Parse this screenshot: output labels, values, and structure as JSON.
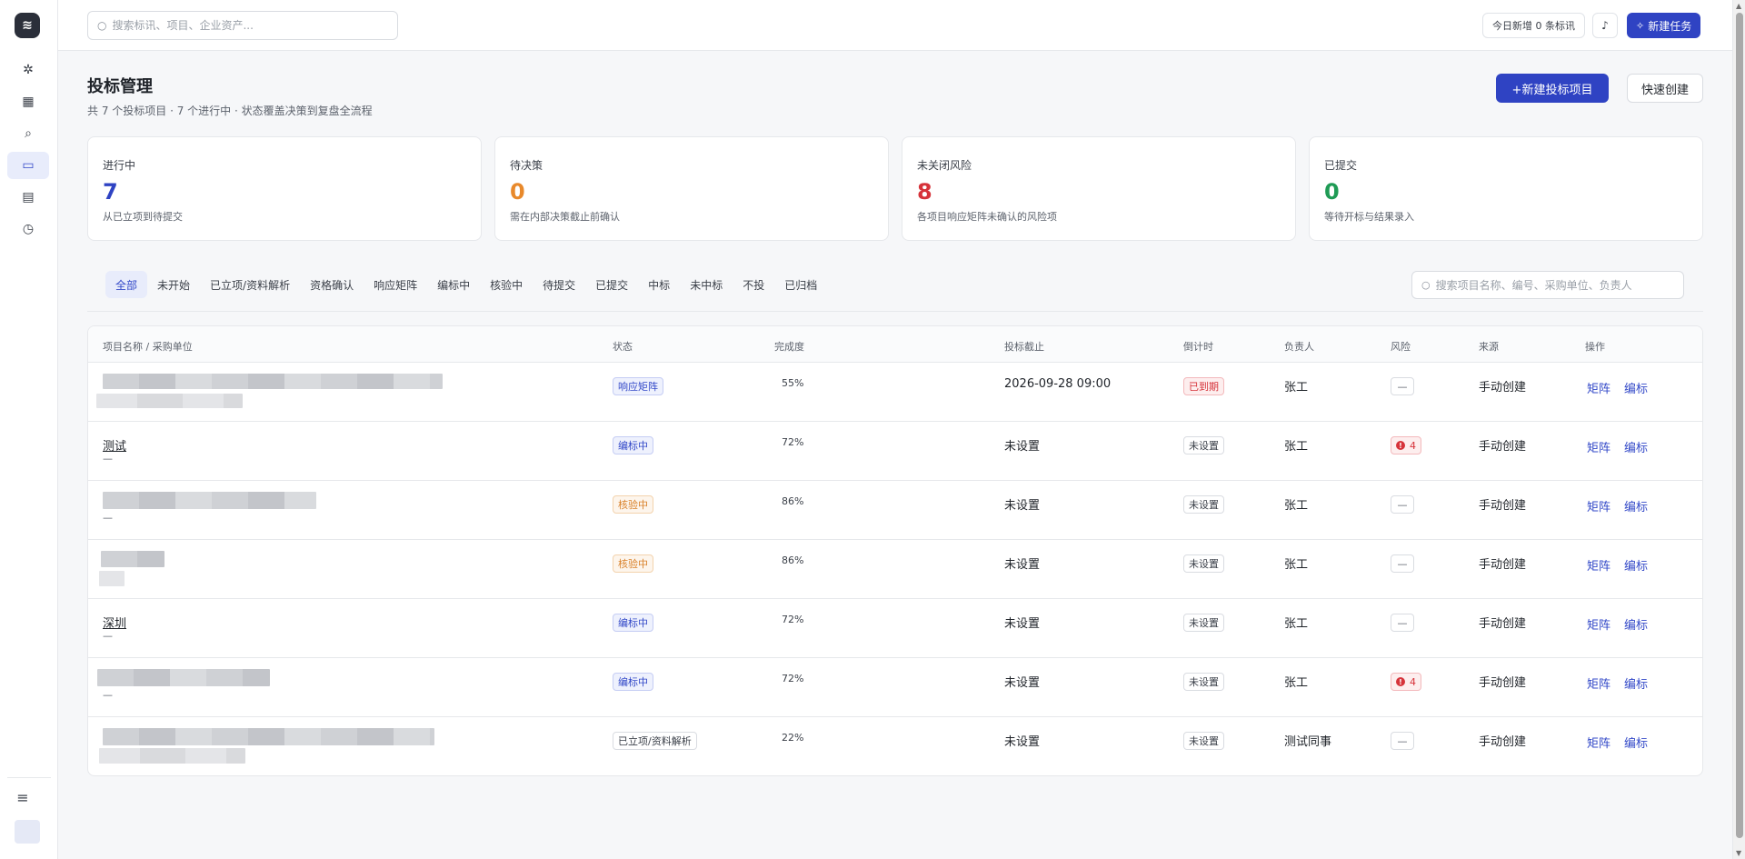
{
  "topbar": {
    "search_placeholder": "搜索标讯、项目、企业资产...",
    "today_chip": "今日新增 0 条标讯",
    "new_task_label": "新建任务"
  },
  "page": {
    "title": "投标管理",
    "subtitle": "共 7 个投标项目 · 7 个进行中 · 状态覆盖决策到复盘全流程",
    "primary_button": "+新建投标项目",
    "secondary_button": "快速创建"
  },
  "stats": [
    {
      "label": "进行中",
      "value": "7",
      "desc": "从已立项到待提交",
      "color": "#2f43c3"
    },
    {
      "label": "待决策",
      "value": "0",
      "desc": "需在内部决策截止前确认",
      "color": "#e8892b"
    },
    {
      "label": "未关闭风险",
      "value": "8",
      "desc": "各项目响应矩阵未确认的风险项",
      "color": "#d6333a"
    },
    {
      "label": "已提交",
      "value": "0",
      "desc": "等待开标与结果录入",
      "color": "#1f9b55"
    }
  ],
  "tabs": [
    "全部",
    "未开始",
    "已立项/资料解析",
    "资格确认",
    "响应矩阵",
    "编标中",
    "核验中",
    "待提交",
    "已提交",
    "中标",
    "未中标",
    "不投",
    "已归档"
  ],
  "project_search_placeholder": "搜索项目名称、编号、采购单位、负责人",
  "table": {
    "headers": {
      "name": "项目名称 / 采购单位",
      "status": "状态",
      "progress": "完成度",
      "deadline": "投标截止",
      "countdown": "倒计时",
      "owner": "负责人",
      "risk": "风险",
      "source": "来源",
      "actions": "操作"
    },
    "rows": [
      {
        "name": "",
        "buyer": "",
        "status": "响应矩阵",
        "progress": "55%",
        "deadline": "2026-09-28 09:00",
        "countdown": "已到期",
        "owner": "张工",
        "risk": "—",
        "source": "手动创建",
        "action1": "矩阵",
        "action2": "编标"
      },
      {
        "name": "测试",
        "buyer": "—",
        "status": "编标中",
        "progress": "72%",
        "deadline": "未设置",
        "countdown": "未设置",
        "owner": "张工",
        "risk": "4",
        "source": "手动创建",
        "action1": "矩阵",
        "action2": "编标"
      },
      {
        "name": "",
        "buyer": "—",
        "status": "核验中",
        "progress": "86%",
        "deadline": "未设置",
        "countdown": "未设置",
        "owner": "张工",
        "risk": "—",
        "source": "手动创建",
        "action1": "矩阵",
        "action2": "编标"
      },
      {
        "name": "",
        "buyer": "",
        "status": "核验中",
        "progress": "86%",
        "deadline": "未设置",
        "countdown": "未设置",
        "owner": "张工",
        "risk": "—",
        "source": "手动创建",
        "action1": "矩阵",
        "action2": "编标"
      },
      {
        "name": "深圳",
        "buyer": "—",
        "status": "编标中",
        "progress": "72%",
        "deadline": "未设置",
        "countdown": "未设置",
        "owner": "张工",
        "risk": "—",
        "source": "手动创建",
        "action1": "矩阵",
        "action2": "编标"
      },
      {
        "name": "",
        "buyer": "—",
        "status": "编标中",
        "progress": "72%",
        "deadline": "未设置",
        "countdown": "未设置",
        "owner": "张工",
        "risk": "4",
        "source": "手动创建",
        "action1": "矩阵",
        "action2": "编标"
      },
      {
        "name": "",
        "buyer": "",
        "status": "已立项/资料解析",
        "progress": "22%",
        "deadline": "未设置",
        "countdown": "未设置",
        "owner": "测试同事",
        "risk": "—",
        "source": "手动创建",
        "action1": "矩阵",
        "action2": "编标"
      }
    ]
  }
}
